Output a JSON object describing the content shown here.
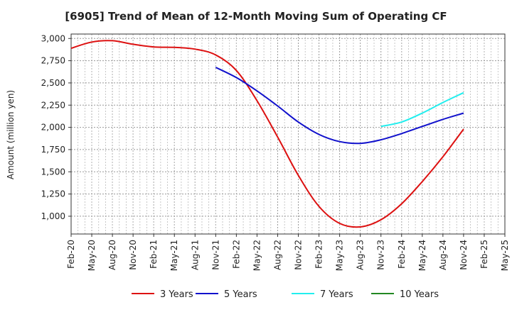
{
  "chart_data": {
    "type": "line",
    "title": "[6905]  Trend of Mean of 12-Month Moving Sum of Operating CF",
    "xlabel": "",
    "ylabel": "Amount (million yen)",
    "ylim": [
      800,
      3050
    ],
    "yticks": [
      1000,
      1250,
      1500,
      1750,
      2000,
      2250,
      2500,
      2750,
      3000
    ],
    "ytick_labels": [
      "1,000",
      "1,250",
      "1,500",
      "1,750",
      "2,000",
      "2,250",
      "2,500",
      "2,750",
      "3,000"
    ],
    "categories": [
      "Feb-20",
      "May-20",
      "Aug-20",
      "Nov-20",
      "Feb-21",
      "May-21",
      "Aug-21",
      "Nov-21",
      "Feb-22",
      "May-22",
      "Aug-22",
      "Nov-22",
      "Feb-23",
      "May-23",
      "Aug-23",
      "Nov-23",
      "Feb-24",
      "May-24",
      "Aug-24",
      "Nov-24",
      "Feb-25",
      "May-25"
    ],
    "grid": true,
    "legend_position": "bottom",
    "series": [
      {
        "name": "3 Years",
        "color": "#dd1111",
        "values": [
          2890,
          2960,
          2975,
          2935,
          2905,
          2900,
          2880,
          2815,
          2640,
          2300,
          1890,
          1460,
          1110,
          920,
          880,
          960,
          1140,
          1390,
          1670,
          1980,
          null,
          null
        ]
      },
      {
        "name": "5 Years",
        "color": "#1111cc",
        "values": [
          null,
          null,
          null,
          null,
          null,
          null,
          null,
          2675,
          2560,
          2410,
          2240,
          2060,
          1920,
          1840,
          1820,
          1860,
          1930,
          2010,
          2090,
          2160,
          null,
          null
        ]
      },
      {
        "name": "7 Years",
        "color": "#22eeee",
        "values": [
          null,
          null,
          null,
          null,
          null,
          null,
          null,
          null,
          null,
          null,
          null,
          null,
          null,
          null,
          null,
          2010,
          2060,
          2160,
          2280,
          2390,
          null,
          null
        ]
      },
      {
        "name": "10 Years",
        "color": "#228822",
        "values": [
          null,
          null,
          null,
          null,
          null,
          null,
          null,
          null,
          null,
          null,
          null,
          null,
          null,
          null,
          null,
          null,
          null,
          null,
          null,
          null,
          null,
          null
        ]
      }
    ]
  }
}
